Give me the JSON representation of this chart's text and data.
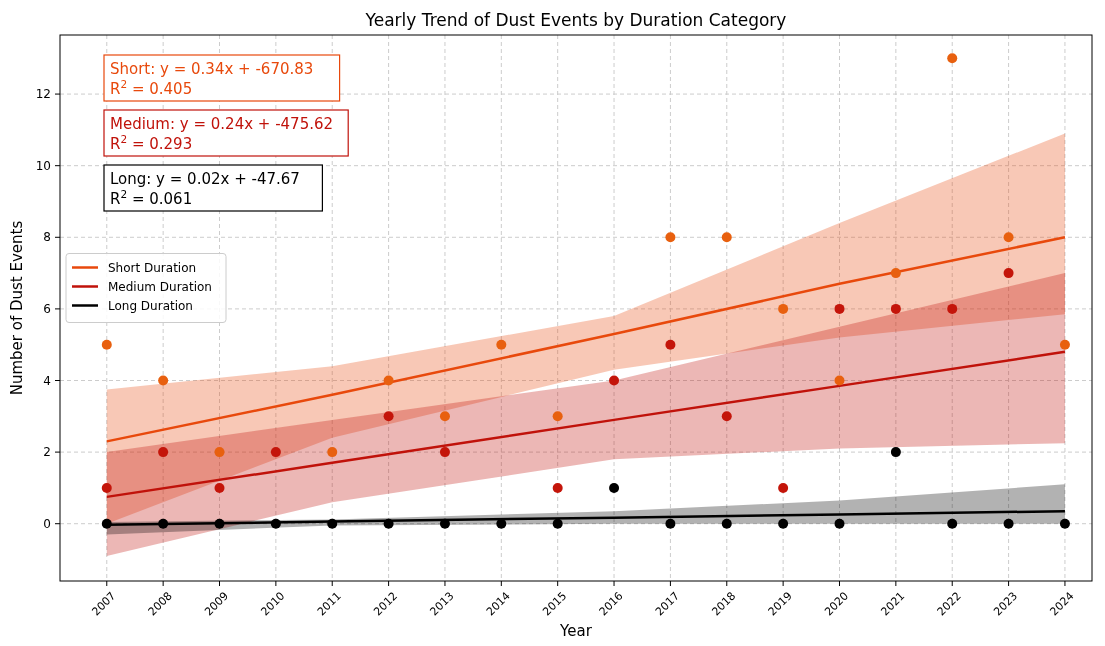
{
  "chart_data": {
    "type": "scatter",
    "title": "Yearly Trend of Dust Events by Duration Category",
    "xlabel": "Year",
    "ylabel": "Number of Dust Events",
    "x": [
      2007,
      2008,
      2009,
      2010,
      2011,
      2012,
      2013,
      2014,
      2015,
      2016,
      2017,
      2018,
      2019,
      2020,
      2021,
      2022,
      2023,
      2024
    ],
    "xlim": [
      2006.17,
      2024.48
    ],
    "xticks": [
      2007,
      2008,
      2009,
      2010,
      2011,
      2012,
      2013,
      2014,
      2015,
      2016,
      2017,
      2018,
      2019,
      2020,
      2021,
      2022,
      2023,
      2024
    ],
    "ylim": [
      -1.6,
      13.65
    ],
    "yticks": [
      0,
      2,
      4,
      6,
      8,
      10,
      12
    ],
    "grid": true,
    "legend": "left",
    "marker": "circle",
    "series": [
      {
        "type": "line",
        "marker": "none",
        "name": "Short Duration",
        "color": "#e8490c",
        "x": [
          2007,
          2011,
          2016,
          2020,
          2024
        ],
        "values": [
          2.3,
          3.6,
          5.3,
          6.7,
          8.0
        ],
        "lower": [
          0.0,
          2.4,
          4.3,
          5.2,
          5.85
        ],
        "upper": [
          3.75,
          4.4,
          5.8,
          8.4,
          10.9
        ]
      },
      {
        "type": "line",
        "marker": "none",
        "name": "Medium Duration",
        "color": "#c0120a",
        "x": [
          2007,
          2011,
          2016,
          2020,
          2024
        ],
        "values": [
          0.75,
          1.7,
          2.9,
          3.85,
          4.8
        ],
        "lower": [
          -0.9,
          0.6,
          1.8,
          2.1,
          2.25
        ],
        "upper": [
          2.0,
          2.9,
          4.0,
          5.5,
          7.0
        ]
      },
      {
        "type": "line",
        "marker": "none",
        "name": "Long Duration",
        "color": "#000000",
        "x": [
          2007,
          2011,
          2016,
          2020,
          2024
        ],
        "values": [
          -0.03,
          0.06,
          0.17,
          0.26,
          0.35
        ],
        "lower": [
          -0.3,
          -0.05,
          0.0,
          0.0,
          0.0
        ],
        "upper": [
          0.05,
          0.12,
          0.35,
          0.65,
          1.1
        ]
      },
      {
        "color": "#e8600f",
        "values": [
          5,
          4,
          2,
          null,
          2,
          4,
          3,
          5,
          3,
          null,
          8,
          8,
          6,
          4,
          7,
          13,
          8,
          5
        ]
      },
      {
        "color": "#c4150a",
        "values": [
          1,
          2,
          1,
          2,
          null,
          3,
          2,
          null,
          1,
          4,
          5,
          3,
          1,
          6,
          6,
          6,
          7,
          null
        ]
      },
      {
        "color": "#000000",
        "values": [
          0,
          0,
          0,
          0,
          0,
          0,
          0,
          0,
          0,
          1,
          0,
          0,
          0,
          0,
          2,
          0,
          0,
          0
        ]
      }
    ],
    "annotations": [
      "Short: y = 0.34x + -670.83\nR$^{2}$ = 0.405",
      "Medium: y = 0.24x + -475.62\nR$^{2}$ = 0.293",
      "Long: y = 0.02x + -47.67\nR$^{2}$ = 0.061"
    ]
  }
}
